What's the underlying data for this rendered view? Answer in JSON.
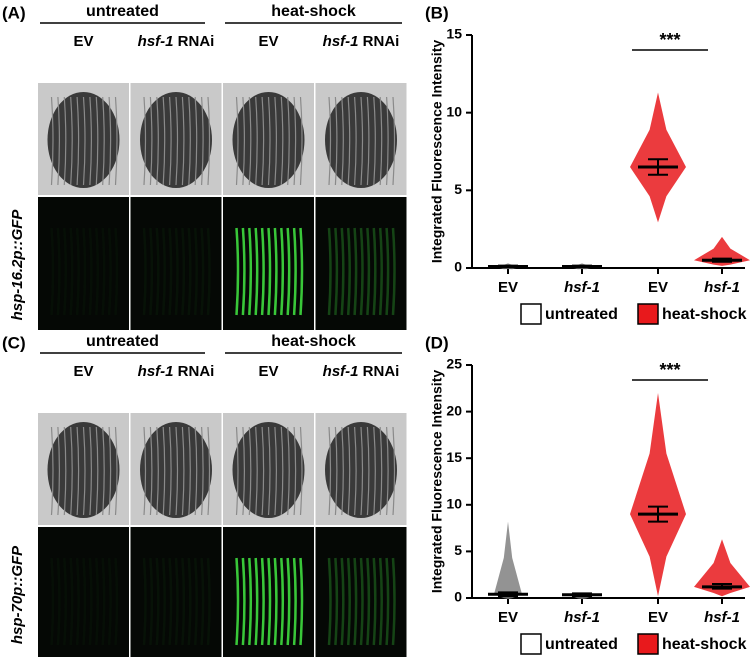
{
  "figure_panels": [
    {
      "label": "(A)",
      "groups": [
        "untreated",
        "heat-shock"
      ],
      "lanes": [
        {
          "text": "EV"
        },
        {
          "gene": "hsf-1",
          "suffix": "RNAi"
        },
        {
          "text": "EV"
        },
        {
          "gene": "hsf-1",
          "suffix": "RNAi"
        }
      ],
      "reporter": "hsp-16.2p::GFP"
    },
    {
      "label": "(C)",
      "groups": [
        "untreated",
        "heat-shock"
      ],
      "lanes": [
        {
          "text": "EV"
        },
        {
          "gene": "hsf-1",
          "suffix": "RNAi"
        },
        {
          "text": "EV"
        },
        {
          "gene": "hsf-1",
          "suffix": "RNAi"
        }
      ],
      "reporter": "hsp-70p::GFP"
    }
  ],
  "chart_data": [
    {
      "type": "strip",
      "label": "(B)",
      "y_label": "Integrated Fluorescence Intensity",
      "categories": [
        "EV",
        "hsf-1",
        "EV",
        "hsf-1"
      ],
      "italic_categories": [
        false,
        true,
        false,
        true
      ],
      "colors": [
        "#808080",
        "#808080",
        "#e8191c",
        "#e8191c"
      ],
      "values": [
        0.1,
        0.1,
        6.5,
        0.5
      ],
      "lower": [
        0.05,
        0.05,
        6.0,
        0.4
      ],
      "upper": [
        0.15,
        0.15,
        7.0,
        0.6
      ],
      "min": [
        0,
        0,
        3,
        0.2
      ],
      "max": [
        0.3,
        0.3,
        11.3,
        2
      ],
      "ylim": [
        0,
        15
      ],
      "yticks": [
        0,
        5,
        10,
        15
      ],
      "significance": "***",
      "legend": [
        {
          "name": "untreated",
          "color": "#ffffff"
        },
        {
          "name": "heat-shock",
          "color": "#e8191c"
        }
      ]
    },
    {
      "type": "strip",
      "label": "(D)",
      "y_label": "Integrated Fluorescence Intensity",
      "categories": [
        "EV",
        "hsf-1",
        "EV",
        "hsf-1"
      ],
      "italic_categories": [
        false,
        true,
        false,
        true
      ],
      "colors": [
        "#808080",
        "#808080",
        "#e8191c",
        "#e8191c"
      ],
      "values": [
        0.4,
        0.35,
        9,
        1.2
      ],
      "lower": [
        0.2,
        0.2,
        8.2,
        1.0
      ],
      "upper": [
        0.6,
        0.5,
        9.8,
        1.5
      ],
      "min": [
        0,
        0,
        0.3,
        0.3
      ],
      "max": [
        8.2,
        0.5,
        22,
        6.3
      ],
      "ylim": [
        0,
        25
      ],
      "yticks": [
        0,
        5,
        10,
        15,
        20,
        25
      ],
      "significance": "***",
      "legend": [
        {
          "name": "untreated",
          "color": "#ffffff"
        },
        {
          "name": "heat-shock",
          "color": "#e8191c"
        }
      ]
    }
  ]
}
